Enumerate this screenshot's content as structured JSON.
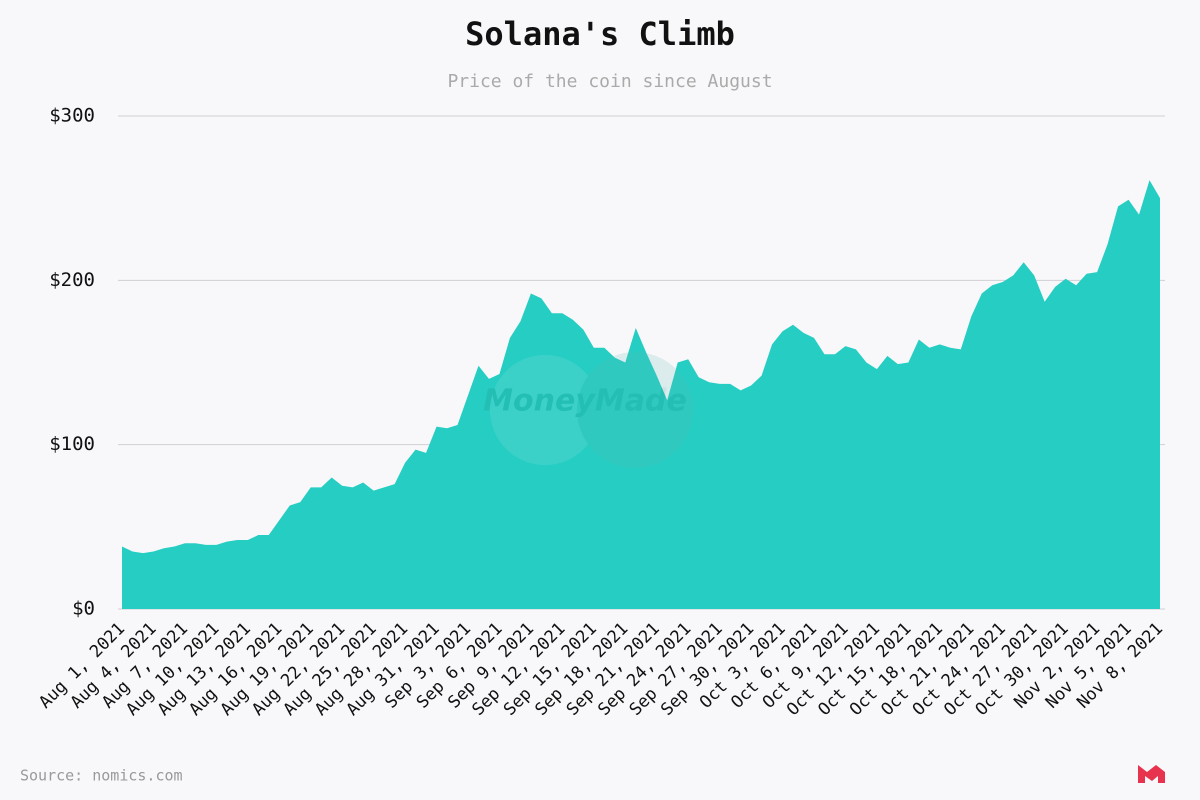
{
  "chart_data": {
    "type": "area",
    "title": "Solana's Climb",
    "subtitle": "Price of the coin since August",
    "source": "Source: nomics.com",
    "watermark": "MoneyMade",
    "color": "#26cdc3",
    "grid": true,
    "ylim": [
      0,
      300
    ],
    "yticks": [
      {
        "value": 0,
        "label": "$0"
      },
      {
        "value": 100,
        "label": "$100"
      },
      {
        "value": 200,
        "label": "$200"
      },
      {
        "value": 300,
        "label": "$300"
      }
    ],
    "categories": [
      "Aug 1, 2021",
      null,
      null,
      "Aug 4, 2021",
      null,
      null,
      "Aug 7, 2021",
      null,
      null,
      "Aug 10, 2021",
      null,
      null,
      "Aug 13, 2021",
      null,
      null,
      "Aug 16, 2021",
      null,
      null,
      "Aug 19, 2021",
      null,
      null,
      "Aug 22, 2021",
      null,
      null,
      "Aug 25, 2021",
      null,
      null,
      "Aug 28, 2021",
      null,
      null,
      "Aug 31, 2021",
      null,
      null,
      "Sep 3, 2021",
      null,
      null,
      "Sep 6, 2021",
      null,
      null,
      "Sep 9, 2021",
      null,
      null,
      "Sep 12, 2021",
      null,
      null,
      "Sep 15, 2021",
      null,
      null,
      "Sep 18, 2021",
      null,
      null,
      "Sep 21, 2021",
      null,
      null,
      "Sep 24, 2021",
      null,
      null,
      "Sep 27, 2021",
      null,
      null,
      "Sep 30, 2021",
      null,
      null,
      "Oct 3, 2021",
      null,
      null,
      "Oct 6, 2021",
      null,
      null,
      "Oct 9, 2021",
      null,
      null,
      "Oct 12, 2021",
      null,
      null,
      "Oct 15, 2021",
      null,
      null,
      "Oct 18, 2021",
      null,
      null,
      "Oct 21, 2021",
      null,
      null,
      "Oct 24, 2021",
      null,
      null,
      "Oct 27, 2021",
      null,
      null,
      "Oct 30, 2021",
      null,
      null,
      "Nov 2, 2021",
      null,
      null,
      "Nov 5, 2021",
      null,
      null,
      "Nov 8, 2021"
    ],
    "values": [
      38,
      35,
      34,
      35,
      37,
      38,
      40,
      40,
      39,
      39,
      41,
      42,
      42,
      45,
      45,
      54,
      63,
      65,
      74,
      74,
      80,
      75,
      74,
      77,
      72,
      74,
      76,
      89,
      97,
      95,
      111,
      110,
      112,
      130,
      148,
      140,
      143,
      165,
      175,
      192,
      189,
      180,
      180,
      176,
      170,
      159,
      159,
      153,
      150,
      171,
      156,
      142,
      127,
      150,
      152,
      141,
      138,
      137,
      137,
      133,
      136,
      142,
      161,
      169,
      173,
      168,
      165,
      155,
      155,
      160,
      158,
      150,
      146,
      154,
      149,
      150,
      164,
      159,
      161,
      159,
      158,
      178,
      192,
      197,
      199,
      203,
      211,
      203,
      187,
      196,
      201,
      197,
      204,
      205,
      222,
      245,
      249,
      240,
      261,
      250
    ]
  }
}
